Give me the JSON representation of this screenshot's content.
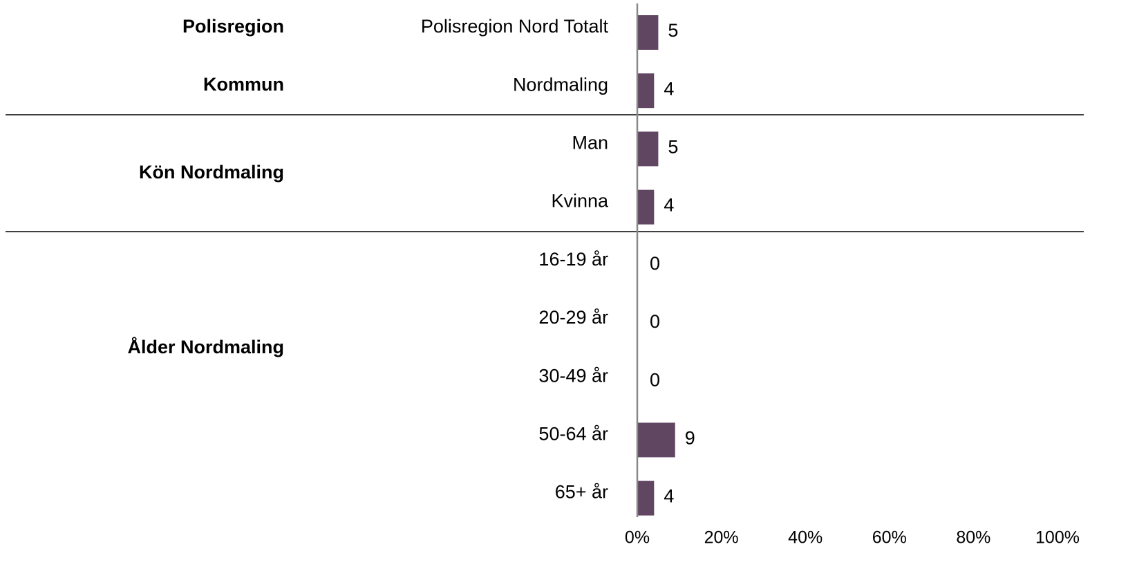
{
  "chart_data": {
    "type": "bar",
    "orientation": "horizontal",
    "group_labels": [
      "Polisregion",
      "Kommun",
      "Kön Nordmaling",
      "Ålder Nordmaling"
    ],
    "categories": [
      "Polisregion Nord Totalt",
      "Nordmaling",
      "Man",
      "Kvinna",
      "16-19 år",
      "20-29 år",
      "30-49 år",
      "50-64 år",
      "65+ år"
    ],
    "values": [
      5,
      4,
      5,
      4,
      0,
      0,
      0,
      9,
      4
    ],
    "color": "#604661",
    "xlim": [
      0,
      100
    ],
    "xticks": [
      {
        "value": 0,
        "label": "0%"
      },
      {
        "value": 20,
        "label": "20%"
      },
      {
        "value": 40,
        "label": "40%"
      },
      {
        "value": 60,
        "label": "60%"
      },
      {
        "value": 80,
        "label": "80%"
      },
      {
        "value": 100,
        "label": "100%"
      }
    ],
    "grid": false
  }
}
